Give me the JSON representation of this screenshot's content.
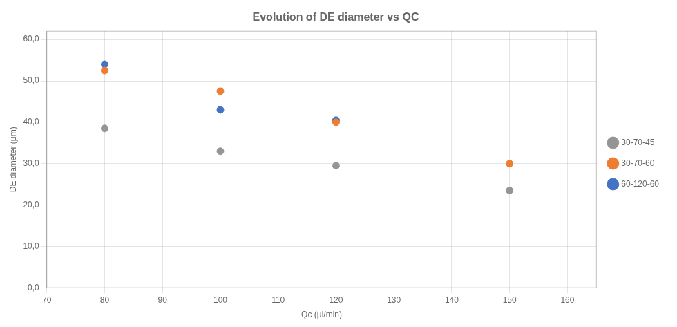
{
  "chart_data": {
    "type": "scatter",
    "title": "Evolution of DE diameter vs QC",
    "xlabel": "Qc (μl/min)",
    "ylabel": "DE diameter (μm)",
    "xlim": [
      70,
      165
    ],
    "ylim": [
      0,
      62
    ],
    "xticks": [
      70,
      80,
      90,
      100,
      110,
      120,
      130,
      140,
      150,
      160
    ],
    "yticks": [
      {
        "value": 0,
        "label": "0,0"
      },
      {
        "value": 10,
        "label": "10,0"
      },
      {
        "value": 20,
        "label": "20,0"
      },
      {
        "value": 30,
        "label": "30,0"
      },
      {
        "value": 40,
        "label": "40,0"
      },
      {
        "value": 50,
        "label": "50,0"
      },
      {
        "value": 60,
        "label": "60,0"
      }
    ],
    "series": [
      {
        "name": "30-70-45",
        "color": "#959595",
        "x": [
          80,
          100,
          120,
          150
        ],
        "values": [
          38.5,
          33,
          29.5,
          23.5
        ]
      },
      {
        "name": "30-70-60",
        "color": "#ED7D31",
        "x": [
          80,
          100,
          120,
          150
        ],
        "values": [
          52.5,
          47.5,
          40,
          30
        ]
      },
      {
        "name": "60-120-60",
        "color": "#4472C4",
        "x": [
          80,
          100,
          120
        ],
        "values": [
          54,
          43,
          40.5
        ]
      }
    ],
    "grid": true,
    "legend": "right"
  }
}
